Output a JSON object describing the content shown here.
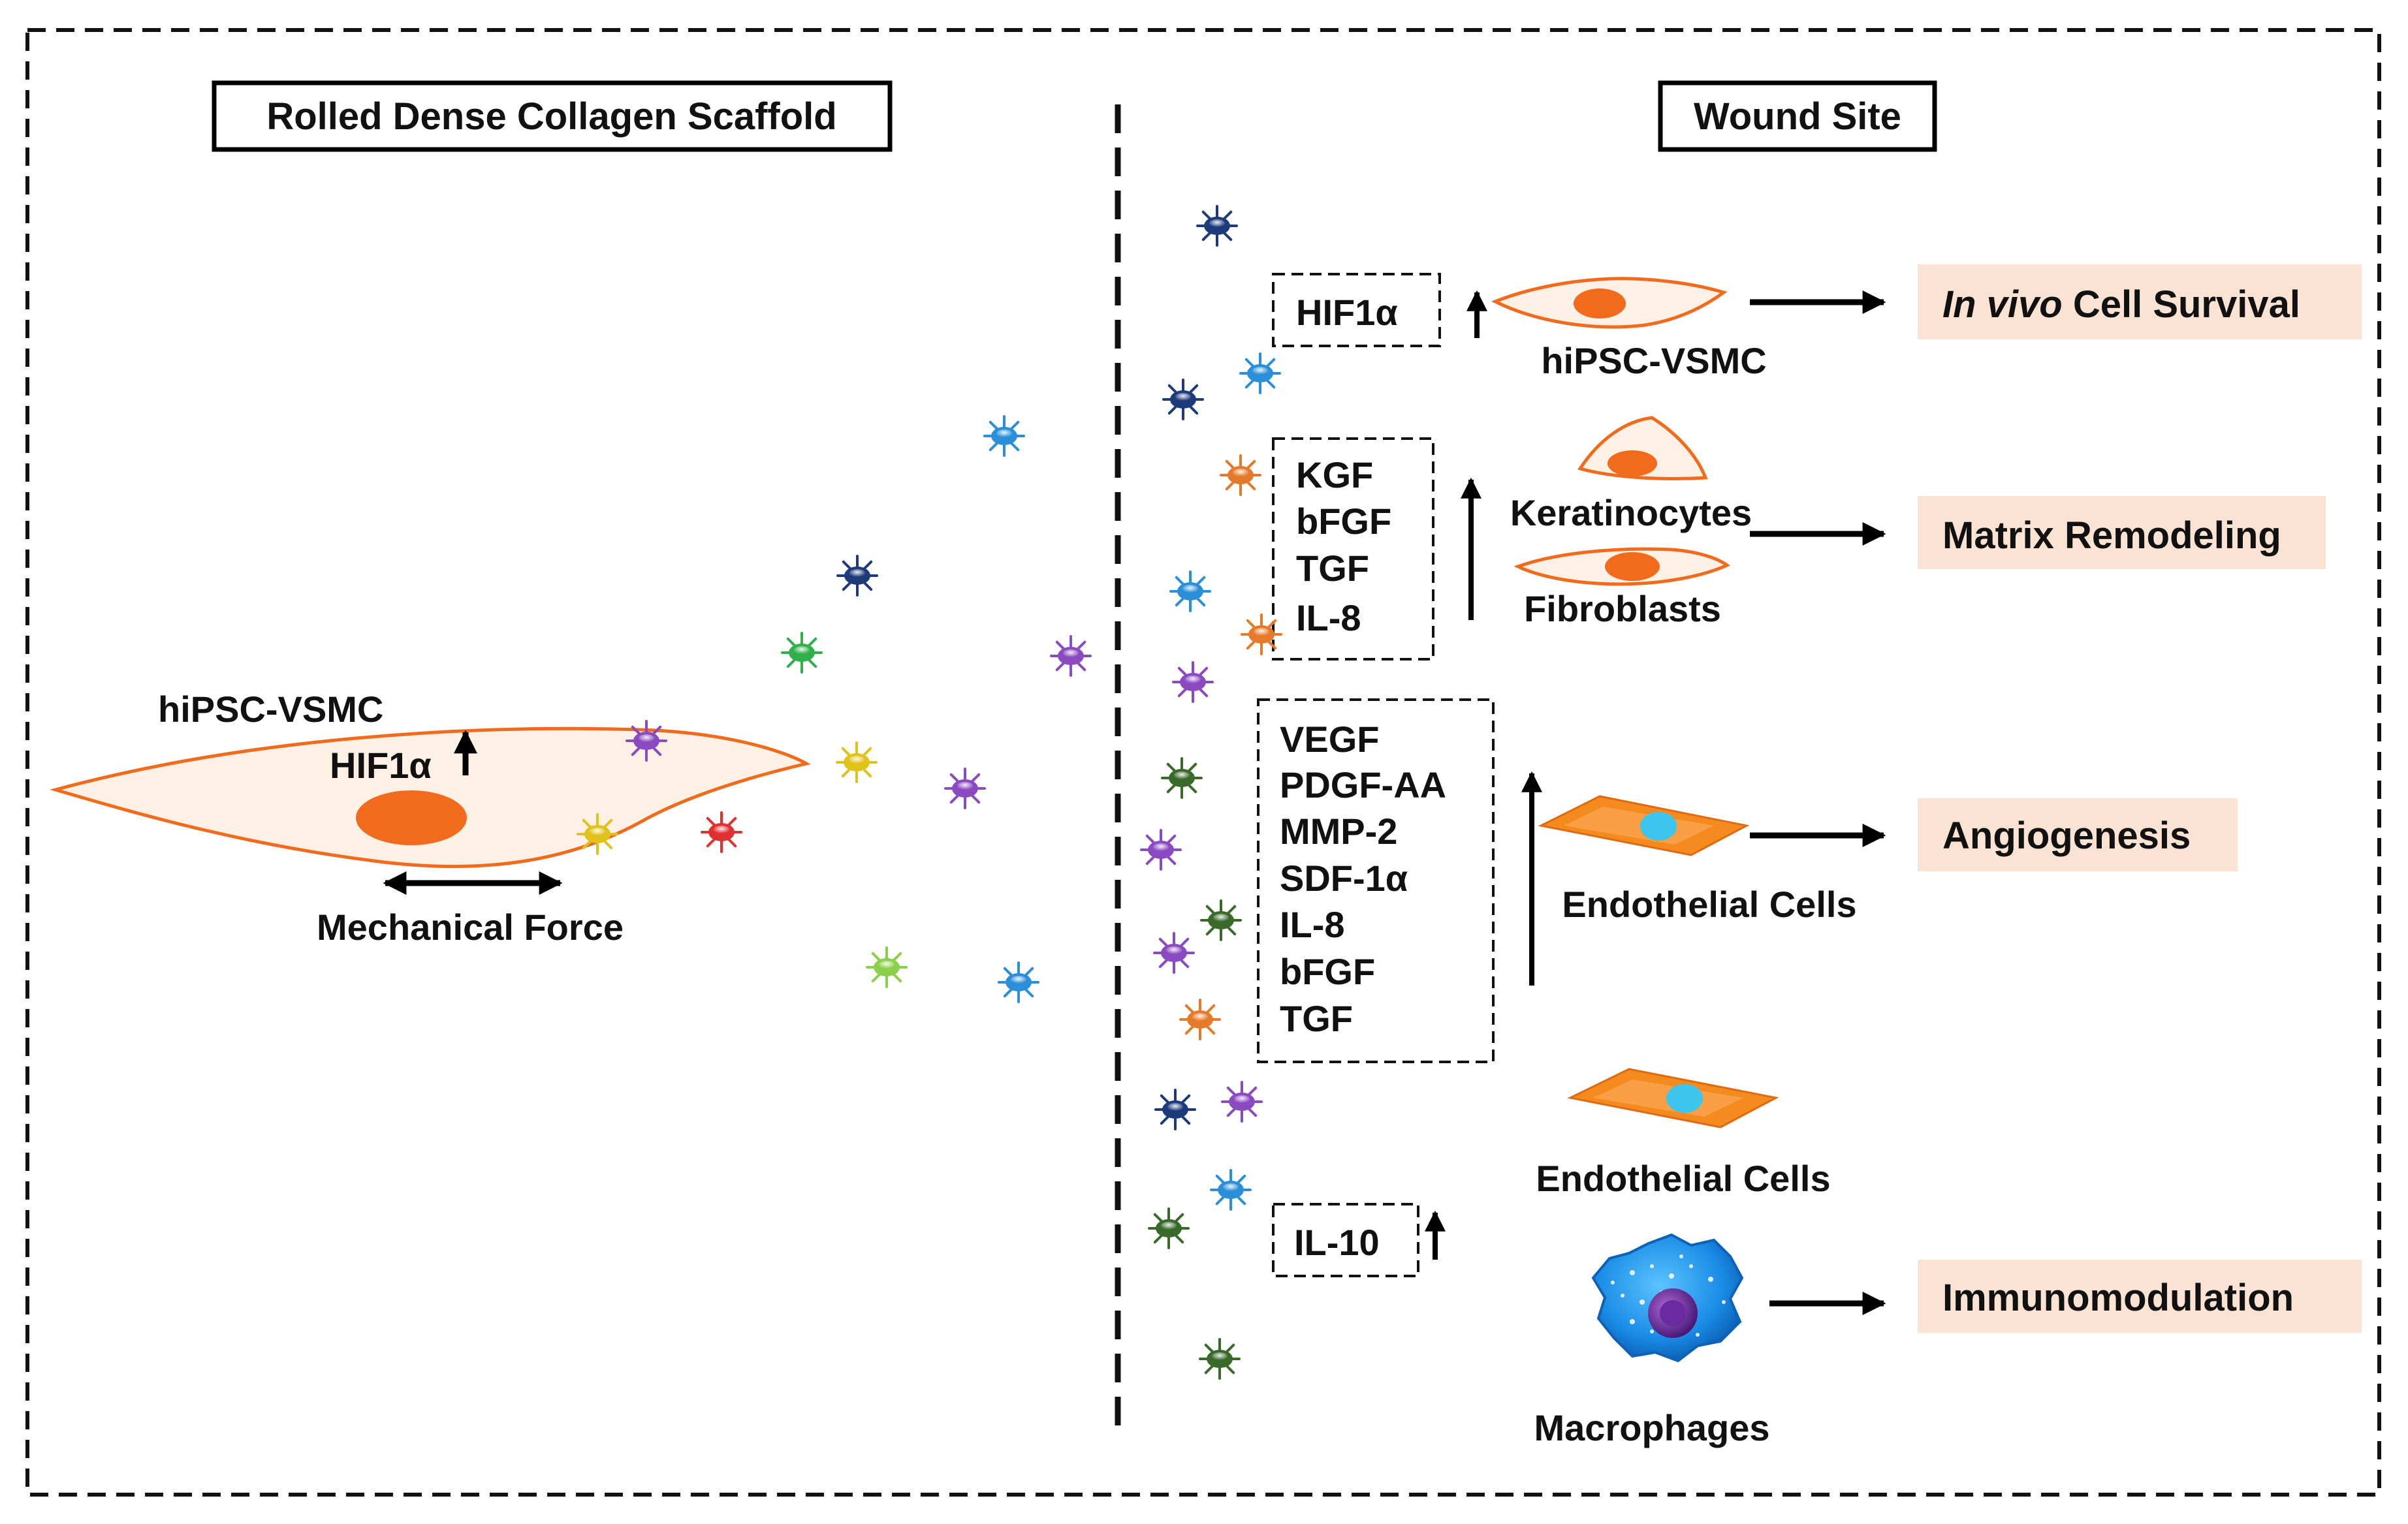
{
  "left_panel": {
    "title": "Rolled Dense Collagen Scaffold",
    "cell_label": "hiPSC-VSMC",
    "hif_label": "HIF1α",
    "force_label": "Mechanical Force"
  },
  "right_panel": {
    "title": "Wound Site",
    "rows": {
      "survival": {
        "factors": [
          "HIF1α"
        ],
        "cell_label": "hiPSC-VSMC",
        "outcome_italic": "In vivo",
        "outcome_rest": " Cell Survival"
      },
      "matrix": {
        "factors": [
          "KGF",
          "bFGF",
          "TGF",
          "IL-8"
        ],
        "cell_labels": [
          "Keratinocytes",
          "Fibroblasts"
        ],
        "outcome": "Matrix Remodeling"
      },
      "angiogenesis": {
        "factors": [
          "VEGF",
          "PDGF-AA",
          "MMP-2",
          "SDF-1α",
          "IL-8",
          "bFGF",
          "TGF"
        ],
        "cell_label": "Endothelial Cells",
        "outcome": "Angiogenesis"
      },
      "immuno": {
        "factors": [
          "IL-10"
        ],
        "cell_labels": [
          "Endothelial Cells",
          "Macrophages"
        ],
        "outcome": "Immunomodulation"
      }
    }
  },
  "colors": {
    "cell_stroke": "#f26a1b",
    "cell_fill": "#fdf1e6",
    "nucleus": "#f26a1b",
    "outcome_box": "#fbe3d4",
    "endothelial": "#f58a1f",
    "endothelial_nucleus": "#3cc6ef",
    "macrophage": "#1f8fe0"
  }
}
